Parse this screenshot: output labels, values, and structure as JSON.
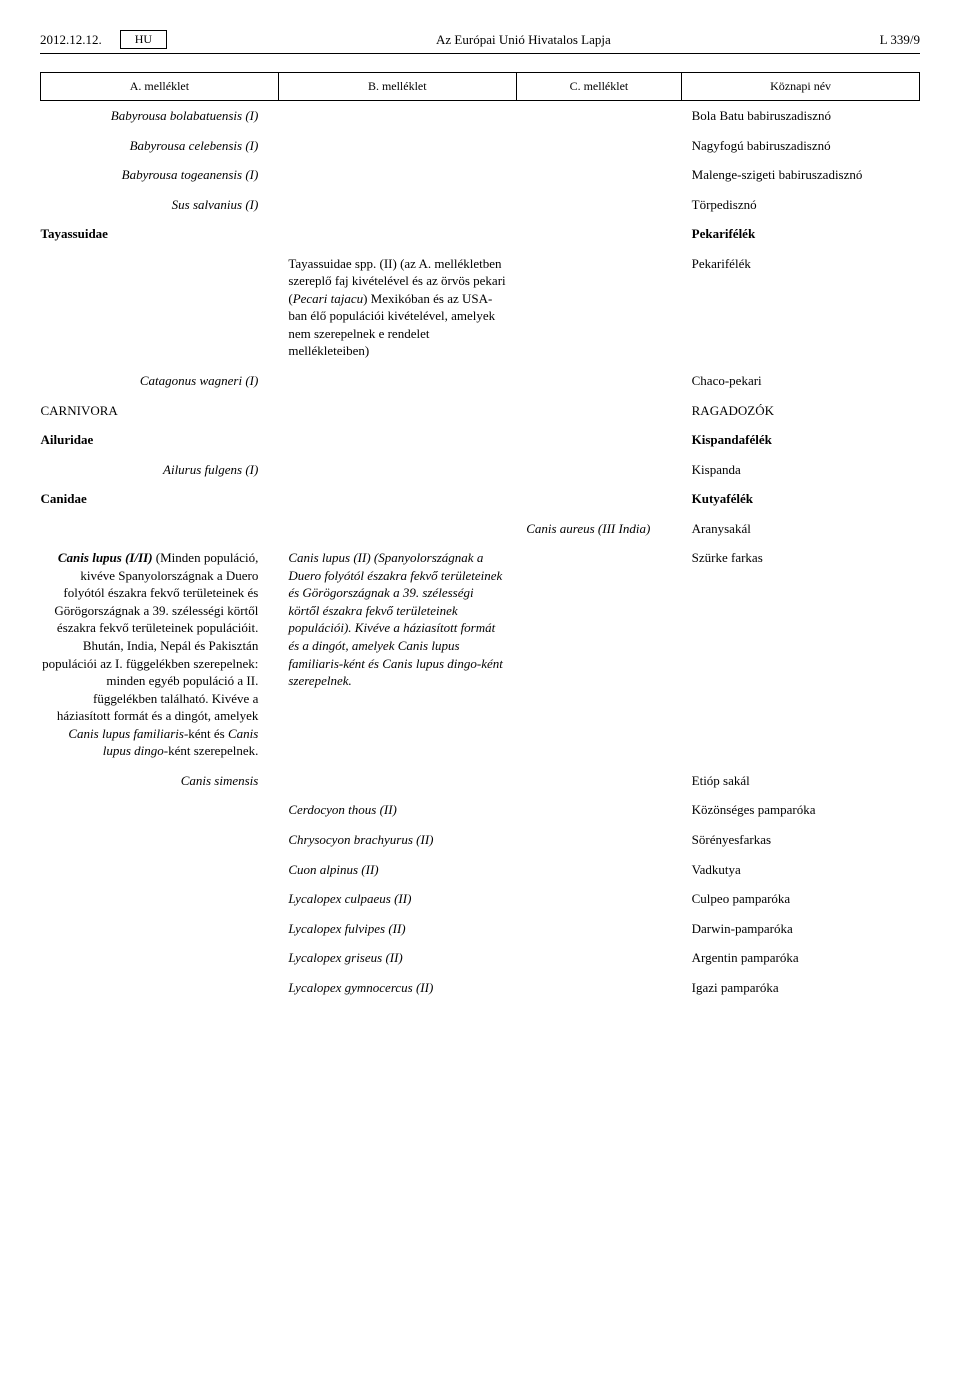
{
  "header": {
    "date": "2012.12.12.",
    "lang": "HU",
    "title": "Az Európai Unió Hivatalos Lapja",
    "page": "L 339/9"
  },
  "columns": {
    "a": "A. melléklet",
    "b": "B. melléklet",
    "c": "C. melléklet",
    "d": "Köznapi név"
  },
  "rows": {
    "r1a": "Babyrousa bolabatuensis (I)",
    "r1d": "Bola Batu babiruszadisznó",
    "r2a": "Babyrousa celebensis (I)",
    "r2d": "Nagyfogú babiruszadisznó",
    "r3a": "Babyrousa togeanensis (I)",
    "r3d": "Malenge-szigeti babiruszadisznó",
    "r4a": "Sus salvanius (I)",
    "r4d": "Törpedisznó",
    "r5left": "Tayassuidae",
    "r5d": "Pekarifélék",
    "r6b_pre": "Tayassuidae spp. (II) (az A. mellékletben szereplő faj kivételével és az örvös pekari (",
    "r6b_it": "Pecari tajacu",
    "r6b_post": ") Mexikóban és az USA-ban élő populációi kivételével, amelyek nem szerepelnek e rendelet mellékleteiben)",
    "r6d": "Pekarifélék",
    "r7a": "Catagonus wagneri (I)",
    "r7d": "Chaco-pekari",
    "r8left": "CARNIVORA",
    "r8d": "RAGADOZÓK",
    "r9left": "Ailuridae",
    "r9d": "Kispandafélék",
    "r10a": "Ailurus fulgens (I)",
    "r10d": "Kispanda",
    "r11left": "Canidae",
    "r11d": "Kutyafélék",
    "r12c": "Canis aureus (III India)",
    "r12d": "Aranysakál",
    "r13a_bolditalic": "Canis lupus (I/II)",
    "r13a_rest": " (Minden populáció, kivéve Spanyolországnak a Duero folyótól északra fekvő területeinek és Görögországnak a 39. szélességi körtől északra fekvő területeinek populációit. Bhután, India, Nepál és Pakisztán populációi az I. függelékben szerepelnek: minden egyéb populáció a II. függelékben található. Kivéve a háziasított formát és a dingót, amelyek ",
    "r13a_it1": "Canis lupus familiaris",
    "r13a_mid": "-ként és ",
    "r13a_it2": "Canis lupus dingo",
    "r13a_end": "-ként szerepelnek.",
    "r13b_pre": "Canis lupus (II) (Spanyolországnak a Duero folyótól északra fekvő területeinek és Görögországnak a 39. szélességi körtől északra fekvő területeinek populációi). Kivéve a háziasított formát és a dingót, amelyek ",
    "r13b_it1": "Canis lupus familiaris",
    "r13b_mid": "-ként és ",
    "r13b_it2": "Canis lupus dingo",
    "r13b_end": "-ként szerepelnek.",
    "r13d": "Szürke farkas",
    "r14a": "Canis simensis",
    "r14d": "Etióp sakál",
    "r15b": "Cerdocyon thous (II)",
    "r15d": "Közönséges pamparóka",
    "r16b": "Chrysocyon brachyurus (II)",
    "r16d": "Sörényesfarkas",
    "r17b": "Cuon alpinus (II)",
    "r17d": "Vadkutya",
    "r18b": "Lycalopex culpaeus (II)",
    "r18d": "Culpeo pamparóka",
    "r19b": "Lycalopex fulvipes (II)",
    "r19d": "Darwin-pamparóka",
    "r20b": "Lycalopex griseus (II)",
    "r20d": "Argentin pamparóka",
    "r21b": "Lycalopex gymnocercus (II)",
    "r21d": "Igazi pamparóka"
  }
}
